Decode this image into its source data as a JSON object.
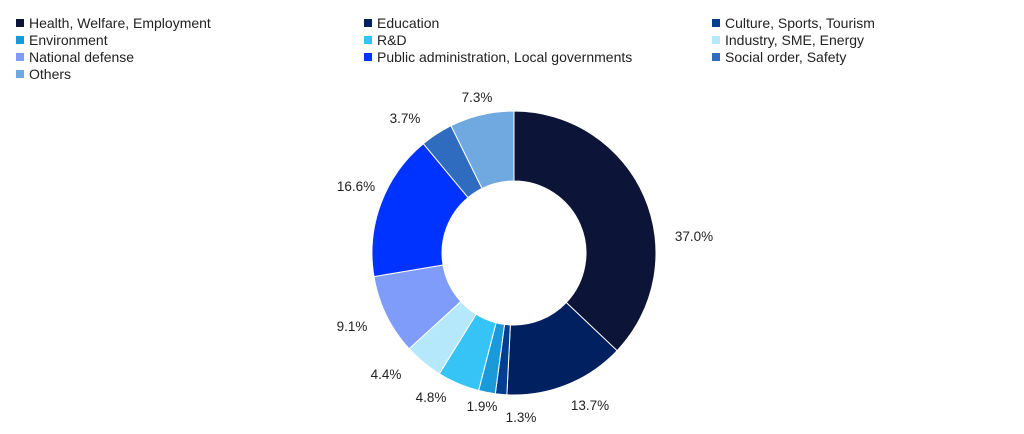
{
  "chart_data": {
    "type": "pie",
    "donut": true,
    "legend_position": "top",
    "categories": [
      "Health, Welfare, Employment",
      "Education",
      "Culture, Sports, Tourism",
      "Environment",
      "R&D",
      "Industry, SME, Energy",
      "National defense",
      "Public administration, Local governments",
      "Social order, Safety",
      "Others"
    ],
    "values": [
      37.0,
      13.7,
      1.3,
      1.9,
      4.8,
      4.4,
      9.1,
      16.6,
      3.7,
      7.3
    ],
    "labels": [
      "37.0%",
      "13.7%",
      "1.3%",
      "1.9%",
      "4.8%",
      "4.4%",
      "9.1%",
      "16.6%",
      "3.7%",
      "7.3%"
    ],
    "colors": [
      "#0c1438",
      "#002060",
      "#003f8f",
      "#1a9ad8",
      "#36c4f7",
      "#b5e8fa",
      "#7f9cfb",
      "#0033ff",
      "#2f6cc0",
      "#70a8e0"
    ]
  }
}
